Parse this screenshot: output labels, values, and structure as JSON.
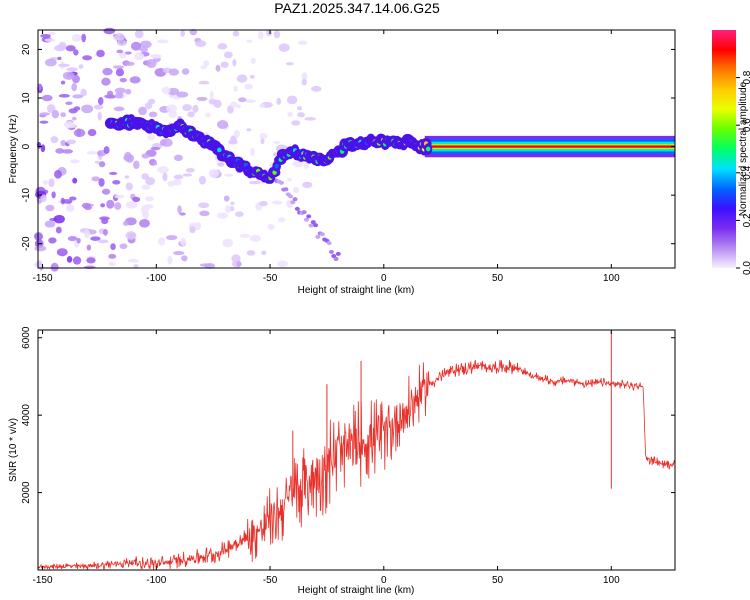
{
  "title": "PAZ1.2025.347.14.06.G25",
  "colors": {
    "snr_line": "#e8302a",
    "axis": "#000000",
    "background": "#ffffff"
  },
  "chart_data": [
    {
      "type": "heatmap",
      "name": "spectrogram",
      "xlabel": "Height of straight line (km)",
      "ylabel": "Frequency (Hz)",
      "xlim": [
        -152,
        128
      ],
      "ylim": [
        -25,
        24
      ],
      "x_ticks": [
        -150,
        -100,
        -50,
        0,
        50,
        100
      ],
      "y_ticks": [
        -20,
        -10,
        0,
        10,
        20
      ],
      "ridge": {
        "x": [
          -120,
          -110,
          -100,
          -95,
          -90,
          -85,
          -80,
          -75,
          -70,
          -65,
          -60,
          -55,
          -50,
          -45,
          -40,
          -35,
          -30,
          -25,
          -20,
          -15,
          -10,
          -5,
          0,
          5,
          10,
          15,
          20,
          125
        ],
        "y": [
          4.5,
          5,
          4,
          3,
          4,
          3,
          1.5,
          0,
          -2,
          -3,
          -4.5,
          -5.5,
          -7,
          -2,
          -1,
          -2,
          -2.5,
          -2.5,
          -1,
          0.5,
          0.5,
          1,
          1,
          0.5,
          1,
          0,
          0,
          0
        ]
      },
      "colorbar": {
        "label": "Normalized spectral amplitude",
        "ticks": [
          0.0,
          0.2,
          0.4,
          0.6,
          0.8
        ],
        "range": [
          0,
          1
        ],
        "colormap": [
          "#f7f0ff",
          "#b78cf0",
          "#7a2cf2",
          "#3b10ff",
          "#0066ff",
          "#00e0ff",
          "#00ff66",
          "#66ff00",
          "#e8ff00",
          "#ffcc00",
          "#ff7700",
          "#ff0000",
          "#ff2080"
        ]
      }
    },
    {
      "type": "line",
      "name": "snr",
      "xlabel": "Height of straight line (km)",
      "ylabel": "SNR (10 * v/v)",
      "xlim": [
        -152,
        128
      ],
      "ylim": [
        0,
        6200
      ],
      "x_ticks": [
        -150,
        -100,
        -50,
        0,
        50,
        100
      ],
      "y_ticks": [
        2000,
        4000,
        6000
      ],
      "series": [
        {
          "name": "SNR",
          "x": [
            -152,
            -140,
            -130,
            -120,
            -110,
            -100,
            -90,
            -80,
            -75,
            -70,
            -65,
            -60,
            -55,
            -50,
            -45,
            -40,
            -35,
            -30,
            -25,
            -20,
            -15,
            -10,
            -5,
            0,
            5,
            10,
            15,
            20,
            25,
            30,
            35,
            40,
            45,
            50,
            55,
            60,
            65,
            70,
            75,
            80,
            85,
            90,
            95,
            100,
            105,
            110,
            114,
            115,
            116,
            120,
            125,
            128
          ],
          "y": [
            80,
            100,
            100,
            150,
            200,
            150,
            250,
            350,
            400,
            500,
            700,
            800,
            1000,
            1300,
            1600,
            2000,
            2200,
            2400,
            2700,
            3000,
            3100,
            3300,
            3400,
            3500,
            3800,
            4100,
            4500,
            4800,
            5000,
            5150,
            5200,
            5250,
            5250,
            5250,
            5250,
            5200,
            5000,
            4950,
            4850,
            4900,
            4850,
            4800,
            4850,
            4800,
            4800,
            4750,
            4750,
            3000,
            2850,
            2800,
            2700,
            2800
          ]
        }
      ],
      "spikes": [
        {
          "x": 100,
          "y": 6200
        },
        {
          "x": 100,
          "y": 2100
        },
        {
          "x": -10,
          "y": 5400
        },
        {
          "x": -25,
          "y": 4800
        },
        {
          "x": -40,
          "y": 3600
        }
      ]
    }
  ]
}
